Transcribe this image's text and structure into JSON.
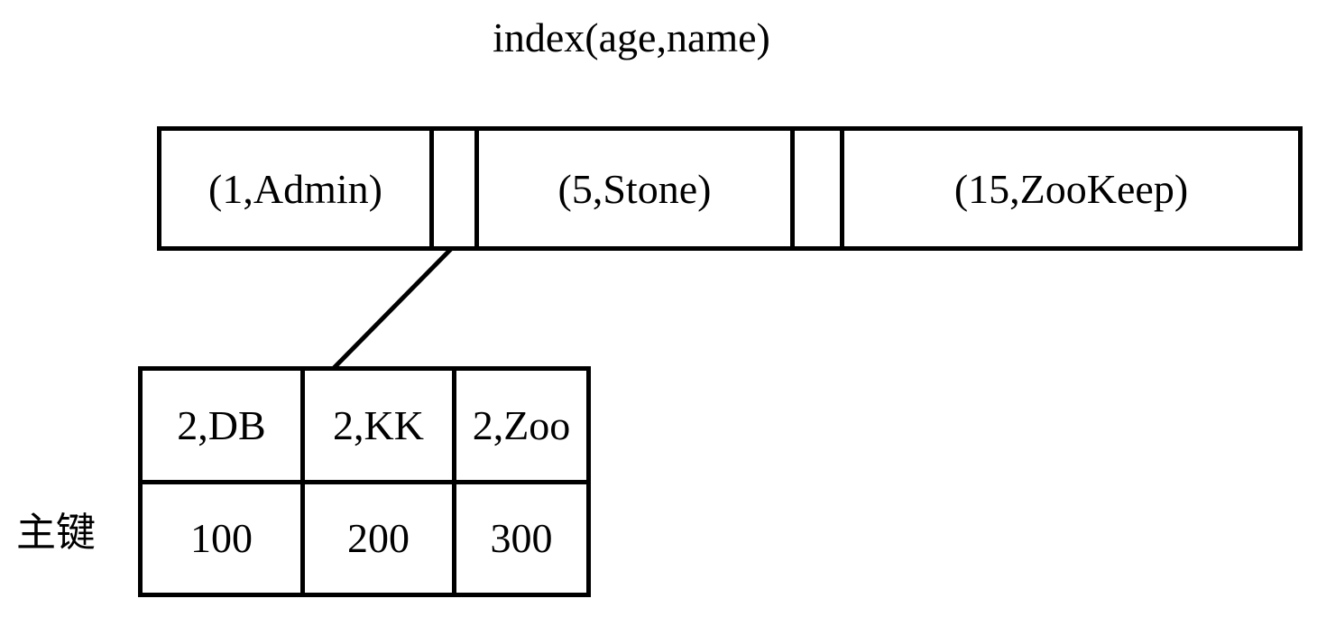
{
  "title": "index(age,name)",
  "root_node": {
    "keys": [
      "(1,Admin)",
      "(5,Stone)",
      "(15,ZooKeep)"
    ]
  },
  "leaf_node": {
    "index_entries": [
      "2,DB",
      "2,KK",
      "2,Zoo"
    ],
    "primary_keys": [
      "100",
      "200",
      "300"
    ]
  },
  "primary_key_label": "主键",
  "colors": {
    "stroke": "#000000",
    "background": "#ffffff"
  }
}
